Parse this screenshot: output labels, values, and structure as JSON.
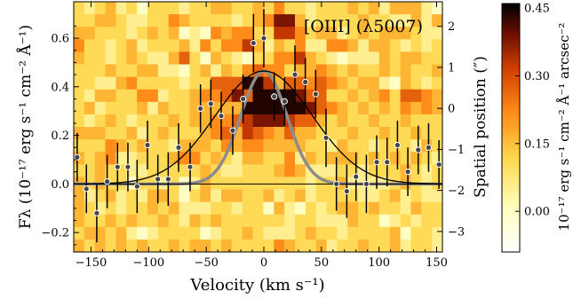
{
  "chart_data": [
    {
      "type": "scatter",
      "annotation": "[OIII] (λ5007)",
      "xlabel": "Velocity (km s⁻¹)",
      "ylabel": "Fλ (10⁻¹⁷ erg s⁻¹ cm⁻² Å⁻¹)",
      "y2label": "Spatial position (″)",
      "xlim": [
        -165,
        155
      ],
      "ylim": [
        -0.28,
        0.75
      ],
      "y2lim": [
        -3.5,
        2.6
      ],
      "xticks": [
        -150,
        -100,
        -50,
        0,
        50,
        100,
        150
      ],
      "yticks": [
        -0.2,
        0.0,
        0.2,
        0.4,
        0.6
      ],
      "y2ticks": [
        -3,
        -2,
        -1,
        0,
        1,
        2
      ],
      "grid": false,
      "series": [
        {
          "x": [
            -162,
            -154,
            -145,
            -136,
            -127,
            -118,
            -110,
            -101,
            -92,
            -83,
            -74,
            -64,
            -55,
            -46,
            -37,
            -27,
            -18,
            -9,
            0,
            9,
            18,
            27,
            36,
            45,
            54,
            63,
            72,
            80,
            89,
            98,
            107,
            116,
            125,
            134,
            143,
            152
          ],
          "y": [
            0.11,
            -0.02,
            -0.12,
            0.01,
            0.07,
            0.07,
            -0.01,
            0.16,
            0.02,
            0.02,
            0.15,
            0.07,
            0.31,
            0.33,
            0.28,
            0.22,
            0.35,
            0.58,
            0.6,
            0.36,
            0.34,
            0.45,
            0.42,
            0.37,
            0.19,
            0.0,
            -0.03,
            0.03,
            0.0,
            0.09,
            0.09,
            0.16,
            0.05,
            0.14,
            0.15,
            0.08
          ],
          "err": [
            0.1,
            0.1,
            0.12,
            0.11,
            0.1,
            0.1,
            0.11,
            0.1,
            0.1,
            0.11,
            0.1,
            0.1,
            0.1,
            0.1,
            0.1,
            0.1,
            0.1,
            0.12,
            0.12,
            0.1,
            0.1,
            0.12,
            0.1,
            0.1,
            0.12,
            0.11,
            0.11,
            0.1,
            0.12,
            0.11,
            0.1,
            0.1,
            0.1,
            0.1,
            0.1,
            0.1
          ]
        },
        {
          "kind": "gaussian",
          "amplitude": 0.465,
          "center": 0,
          "sigma": 42,
          "color": "#000000"
        },
        {
          "kind": "gaussian",
          "amplitude": 0.465,
          "center": 0,
          "sigma": 20,
          "color": "#8c8c8c"
        }
      ]
    },
    {
      "type": "heatmap",
      "colorbar_label": "10⁻¹⁷ erg s⁻¹ cm⁻² Å⁻¹ arcsec⁻²",
      "colorbar_ticks": [
        0.0,
        0.15,
        0.3,
        0.45
      ],
      "colorbar_tick_labels": [
        "0.00",
        "0.15",
        "0.30",
        "0.45"
      ],
      "colorbar_range": [
        -0.09,
        0.46
      ],
      "colormap": "afmhot_r",
      "cells": {
        "x_edges": [
          -165,
          155
        ],
        "y2_edges": [
          -3.5,
          2.6
        ],
        "rows": [
          "32342313332334433435332333434244421",
          "33443223354333323458842333343322424",
          "44333234341215455337753442343444322",
          "53323423334253557424352255424432323",
          "43323432246314321335574321222434433",
          "33343344221342435655344543433434334",
          "33224533332336669974665654344214323",
          "32443355233455686999986633434536654",
          "34233342433444449999998654343435454",
          "32343233343445567888766434334334333",
          "44433423433345647654644333433433433",
          "33354343324443545544443324332333243",
          "43452233345534324433524344434343432",
          "33433223333343223334542223323334323",
          "43433133231243333333332334222234323",
          "42342324431342443342342333322342322",
          "43232334342223323314213234434332433",
          "43343433432434333333233222433123233",
          "34434212333312334322234332333341332",
          "43434343343443433335433423343342332"
        ]
      }
    }
  ]
}
